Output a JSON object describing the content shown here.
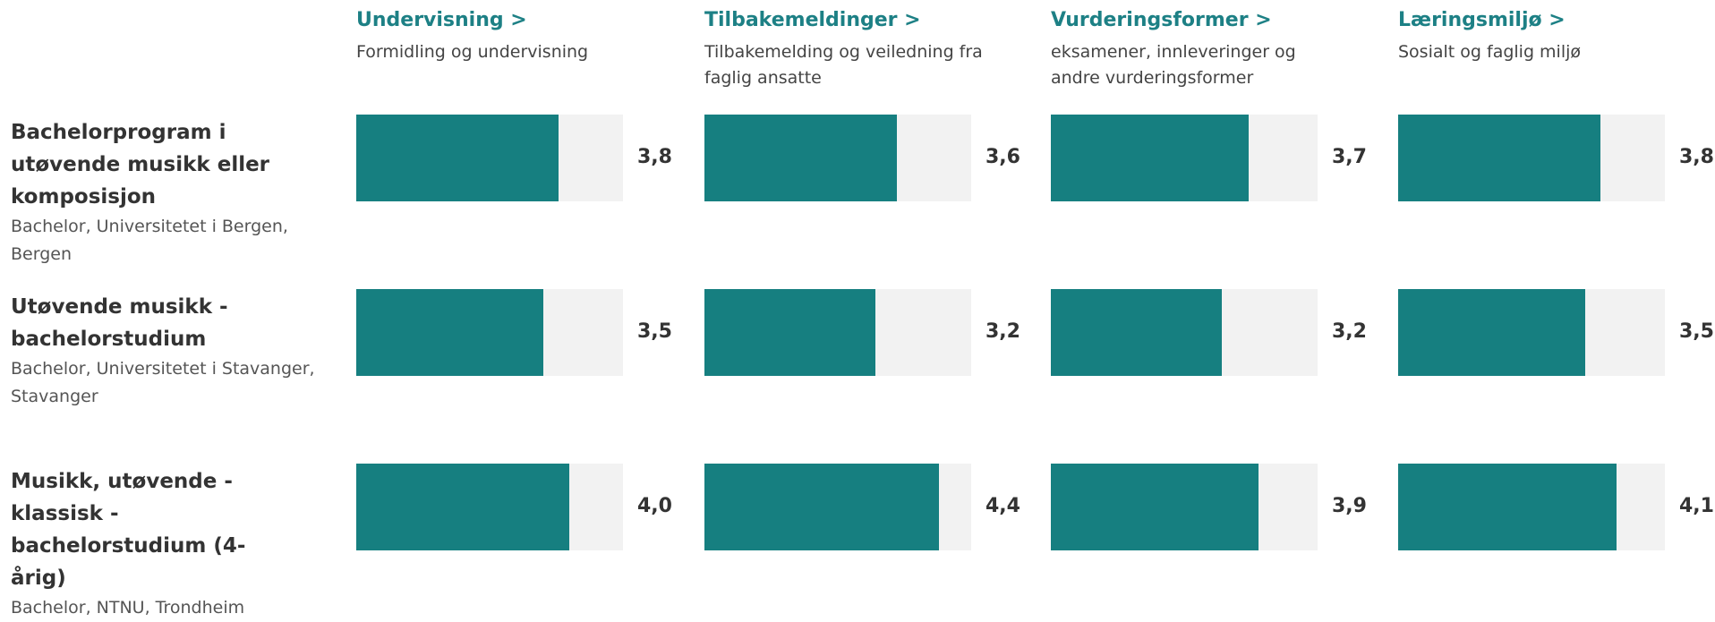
{
  "columns": [
    {
      "title": "Undervisning >",
      "subtitle": "Formidling og undervisning"
    },
    {
      "title": "Tilbakemeldinger >",
      "subtitle": "Tilbakemelding og veiledning fra faglig ansatte"
    },
    {
      "title": "Vurderingsformer >",
      "subtitle": "eksamener, innleveringer og andre vurderingsformer"
    },
    {
      "title": "Læringsmiljø >",
      "subtitle": "Sosialt og faglig miljø"
    }
  ],
  "rows": [
    {
      "title": "Bachelorprogram i utøvende musikk eller komposisjon",
      "subtitle": "Bachelor, Universitetet i Bergen, Bergen",
      "values": [
        3.8,
        3.6,
        3.7,
        3.8
      ],
      "value_labels": [
        "3,8",
        "3,6",
        "3,7",
        "3,8"
      ]
    },
    {
      "title": "Utøvende musikk - bachelorstudium",
      "subtitle": "Bachelor, Universitetet i Stavanger, Stavanger",
      "values": [
        3.5,
        3.2,
        3.2,
        3.5
      ],
      "value_labels": [
        "3,5",
        "3,2",
        "3,2",
        "3,5"
      ]
    },
    {
      "title": "Musikk, utøvende - klassisk - bachelorstudium (4-årig)",
      "subtitle": "Bachelor, NTNU, Trondheim",
      "values": [
        4.0,
        4.4,
        3.9,
        4.1
      ],
      "value_labels": [
        "4,0",
        "4,4",
        "3,9",
        "4,1"
      ]
    }
  ],
  "xlim": [
    0,
    5
  ],
  "bar_color": "#167f80",
  "track_color": "#f2f2f2"
}
